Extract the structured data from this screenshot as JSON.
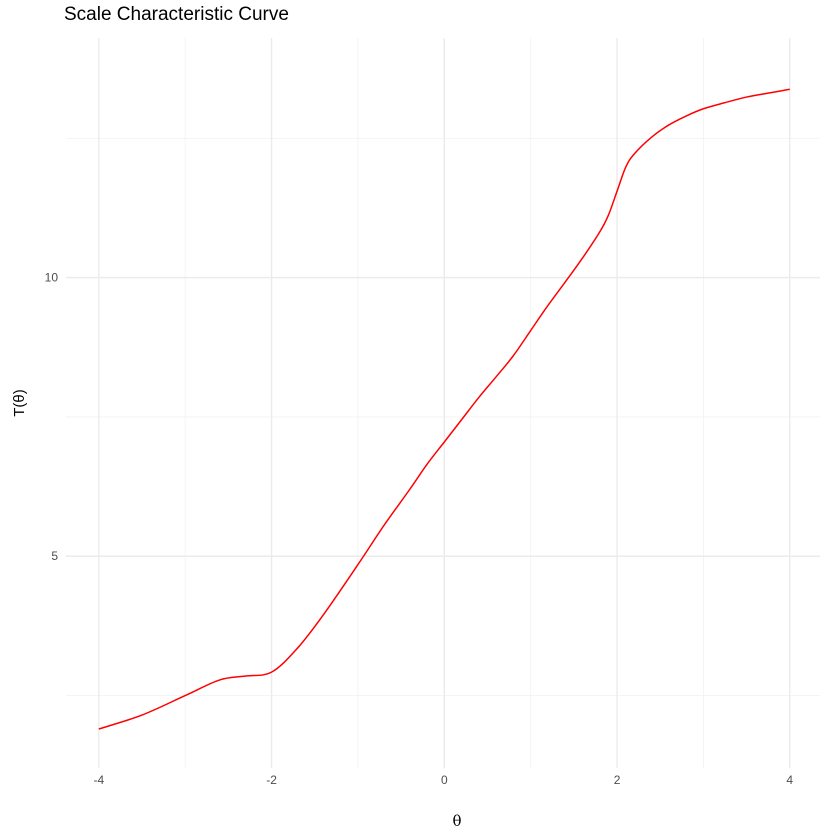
{
  "chart_data": {
    "type": "line",
    "title": "Scale Characteristic Curve",
    "xlabel": "θ",
    "ylabel": "T(θ)",
    "xlim": [
      -4.38,
      4.35
    ],
    "ylim": [
      1.2,
      14.3
    ],
    "x_ticks": [
      -4,
      -2,
      0,
      2,
      4
    ],
    "x_tick_labels": [
      "-4",
      "-2",
      "0",
      "2",
      "4"
    ],
    "y_ticks": [
      5,
      10
    ],
    "y_tick_labels": [
      "5",
      "10"
    ],
    "x_minor_grid": [
      -3,
      -1,
      1,
      3
    ],
    "y_minor_grid": [
      2.5,
      7.5,
      12.5
    ],
    "grid": true,
    "legend": "none",
    "series": [
      {
        "color": "#ff0000",
        "x": [
          -4.0,
          -3.5,
          -3.0,
          -2.6,
          -2.3,
          -2.0,
          -1.7,
          -1.4,
          -1.0,
          -0.7,
          -0.4,
          -0.2,
          0.0,
          0.2,
          0.4,
          0.6,
          0.8,
          1.0,
          1.2,
          1.4,
          1.6,
          1.8,
          1.9,
          2.0,
          2.1,
          2.2,
          2.4,
          2.6,
          2.8,
          3.0,
          3.25,
          3.5,
          3.75,
          4.0
        ],
        "y": [
          1.9,
          2.15,
          2.5,
          2.78,
          2.85,
          2.92,
          3.35,
          3.95,
          4.85,
          5.55,
          6.2,
          6.65,
          7.05,
          7.45,
          7.85,
          8.22,
          8.6,
          9.05,
          9.5,
          9.92,
          10.35,
          10.82,
          11.12,
          11.55,
          11.98,
          12.22,
          12.52,
          12.74,
          12.9,
          13.03,
          13.14,
          13.24,
          13.31,
          13.38
        ]
      }
    ]
  }
}
